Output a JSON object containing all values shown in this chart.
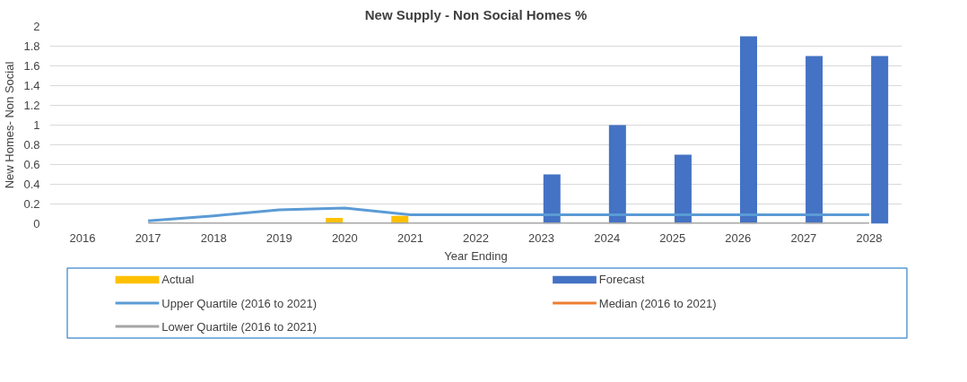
{
  "chart_data": {
    "type": "bar",
    "title": "New Supply - Non Social Homes %",
    "xlabel": "Year Ending",
    "ylabel": "New Homes- Non Social",
    "categories": [
      "2016",
      "2017",
      "2018",
      "2019",
      "2020",
      "2021",
      "2022",
      "2023",
      "2024",
      "2025",
      "2026",
      "2027",
      "2028"
    ],
    "series": [
      {
        "name": "Actual",
        "color": "#ffc000",
        "values": [
          null,
          null,
          null,
          null,
          0.06,
          0.08,
          null,
          null,
          null,
          null,
          null,
          null,
          null
        ]
      },
      {
        "name": "Forecast",
        "color": "#4472c4",
        "values": [
          null,
          null,
          null,
          null,
          null,
          null,
          null,
          0.5,
          1.0,
          0.7,
          1.9,
          1.7,
          1.7
        ]
      },
      {
        "name": "Upper Quartile (2016 to 2021)",
        "type": "line",
        "color": "#5b9bd5",
        "values": [
          null,
          0.03,
          0.08,
          0.14,
          0.16,
          0.09,
          0.09,
          0.09,
          0.09,
          0.09,
          0.09,
          0.09,
          0.09
        ]
      },
      {
        "name": "Median (2016 to 2021)",
        "type": "line",
        "color": "#ed7d31",
        "values": [
          null,
          null,
          null,
          null,
          null,
          null,
          null,
          null,
          null,
          null,
          null,
          null,
          null
        ]
      },
      {
        "name": "Lower Quartile (2016 to 2021)",
        "type": "line",
        "color": "#a5a5a5",
        "values": [
          null,
          0,
          0,
          0,
          0,
          0,
          0,
          0,
          0,
          0,
          0,
          0,
          0
        ]
      }
    ],
    "ylim": [
      0,
      2
    ],
    "yticks": [
      0,
      0.2,
      0.4,
      0.6,
      0.8,
      1,
      1.2,
      1.4,
      1.6,
      1.8,
      2
    ],
    "grid": "y",
    "legend": "bottom"
  }
}
